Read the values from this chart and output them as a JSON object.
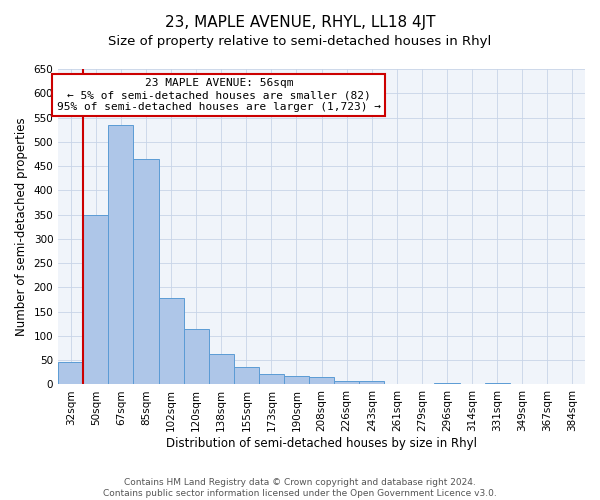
{
  "title": "23, MAPLE AVENUE, RHYL, LL18 4JT",
  "subtitle": "Size of property relative to semi-detached houses in Rhyl",
  "xlabel": "Distribution of semi-detached houses by size in Rhyl",
  "ylabel": "Number of semi-detached properties",
  "bar_labels": [
    "32sqm",
    "50sqm",
    "67sqm",
    "85sqm",
    "102sqm",
    "120sqm",
    "138sqm",
    "155sqm",
    "173sqm",
    "190sqm",
    "208sqm",
    "226sqm",
    "243sqm",
    "261sqm",
    "279sqm",
    "296sqm",
    "314sqm",
    "331sqm",
    "349sqm",
    "367sqm",
    "384sqm"
  ],
  "bar_values": [
    47,
    350,
    535,
    465,
    178,
    115,
    62,
    35,
    22,
    18,
    15,
    8,
    8,
    0,
    0,
    3,
    0,
    3,
    0,
    0,
    0
  ],
  "bar_color": "#aec6e8",
  "bar_edge_color": "#5b9bd5",
  "ylim": [
    0,
    650
  ],
  "yticks": [
    0,
    50,
    100,
    150,
    200,
    250,
    300,
    350,
    400,
    450,
    500,
    550,
    600,
    650
  ],
  "vline_color": "#cc0000",
  "vline_position": 0.575,
  "annotation_title": "23 MAPLE AVENUE: 56sqm",
  "annotation_line1": "← 5% of semi-detached houses are smaller (82)",
  "annotation_line2": "95% of semi-detached houses are larger (1,723) →",
  "annotation_box_color": "#ffffff",
  "annotation_box_edge_color": "#cc0000",
  "footer_line1": "Contains HM Land Registry data © Crown copyright and database right 2024.",
  "footer_line2": "Contains public sector information licensed under the Open Government Licence v3.0.",
  "title_fontsize": 11,
  "subtitle_fontsize": 9.5,
  "label_fontsize": 8.5,
  "tick_fontsize": 7.5,
  "annotation_fontsize": 8,
  "footer_fontsize": 6.5,
  "bg_color": "#f0f4fa"
}
